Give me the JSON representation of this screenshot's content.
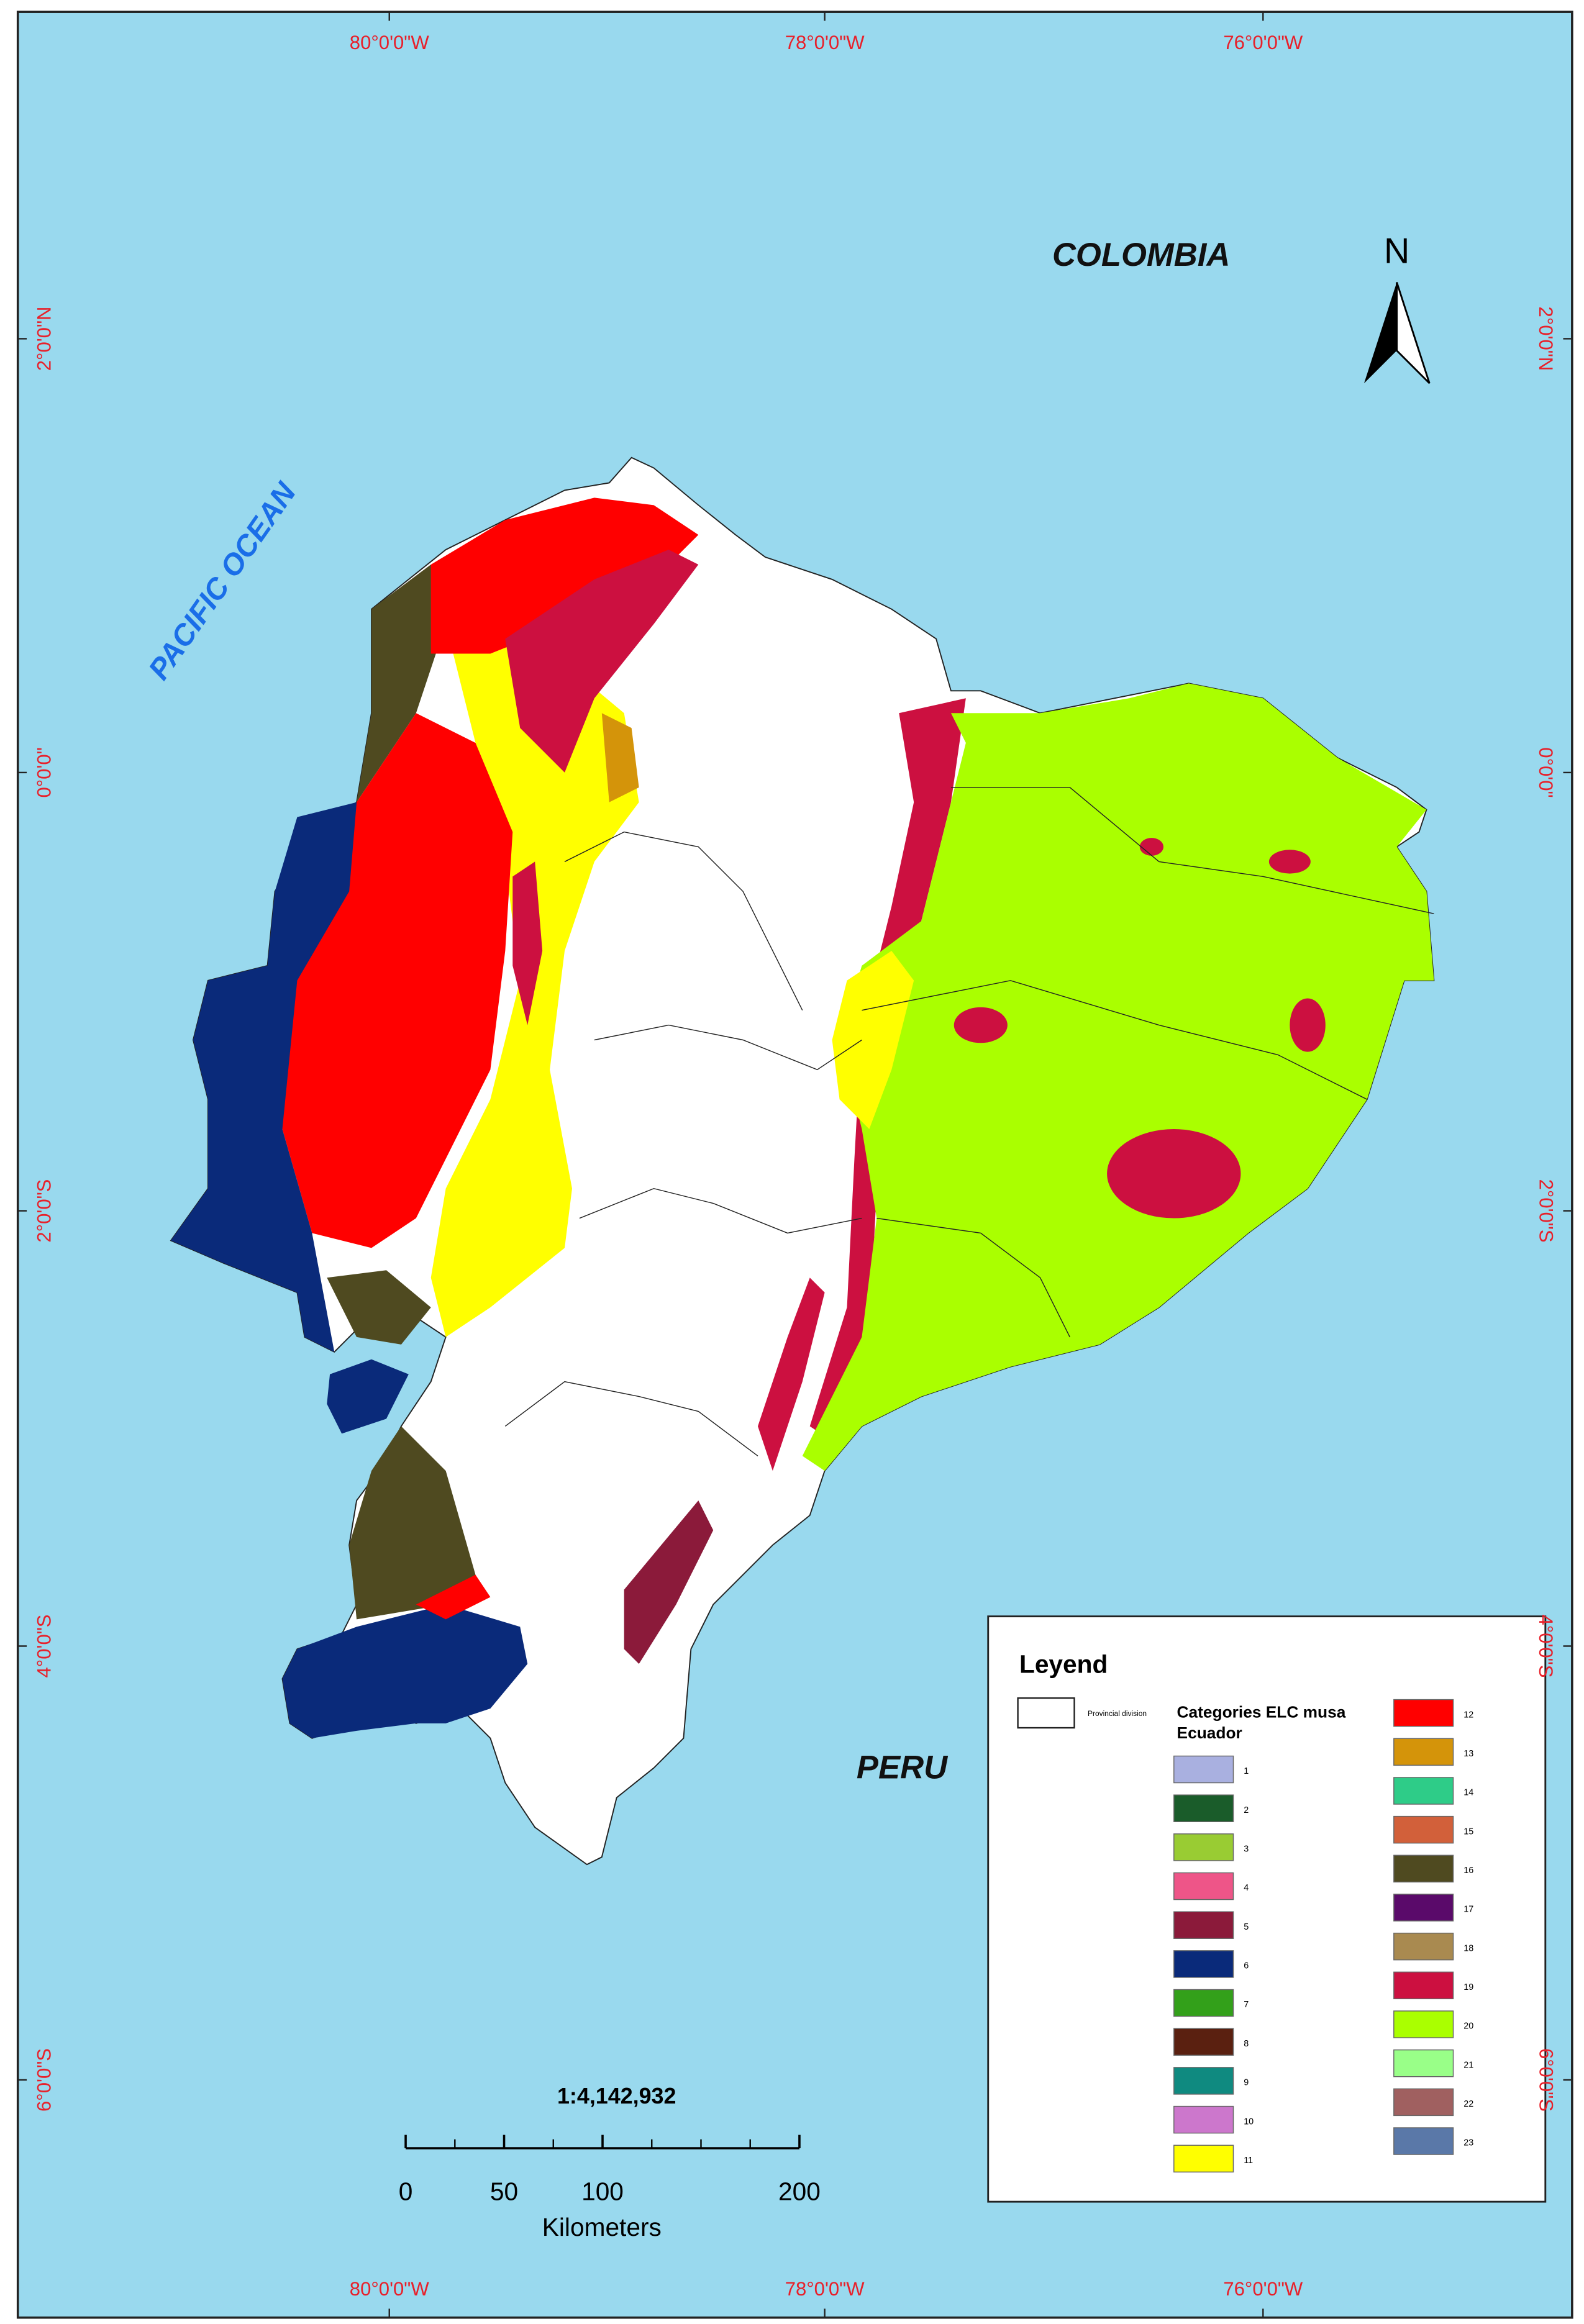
{
  "map": {
    "graticule": {
      "top": [
        "80°0'0\"W",
        "78°0'0\"W",
        "76°0'0\"W"
      ],
      "bottom": [
        "80°0'0\"W",
        "78°0'0\"W",
        "76°0'0\"W"
      ],
      "left": [
        "2°0'0\"N",
        "0°0'0\"",
        "2°0'0\"S",
        "4°0'0\"S",
        "6°0'0\"S"
      ],
      "right": [
        "2°0'0\"N",
        "0°0'0\"",
        "2°0'0\"S",
        "4°0'0\"S",
        "6°0'0\"S"
      ]
    },
    "labels": {
      "colombia": "COLOMBIA",
      "peru": "PERU",
      "ocean": "PACIFIC OCEAN"
    },
    "north_arrow": "N",
    "scale": {
      "ratio": "1:4,142,932",
      "range": [
        0,
        200
      ],
      "ticks": [
        0,
        50,
        100,
        200
      ],
      "unit": "Kilometers"
    }
  },
  "legend": {
    "title": "Leyend",
    "boundary": "Provincial division",
    "heading": [
      "Categories ELC musa",
      "Ecuador"
    ],
    "items": [
      {
        "label": "1",
        "color": "#a9b0e0"
      },
      {
        "label": "2",
        "color": "#1a5c2a"
      },
      {
        "label": "3",
        "color": "#99cc33"
      },
      {
        "label": "4",
        "color": "#ee5588"
      },
      {
        "label": "5",
        "color": "#8b1a3a"
      },
      {
        "label": "6",
        "color": "#0a2a7a"
      },
      {
        "label": "7",
        "color": "#33a01a"
      },
      {
        "label": "8",
        "color": "#5a2010"
      },
      {
        "label": "9",
        "color": "#0f8a80"
      },
      {
        "label": "10",
        "color": "#cc77cc"
      },
      {
        "label": "11",
        "color": "#ffff00"
      },
      {
        "label": "12",
        "color": "#ff0000"
      },
      {
        "label": "13",
        "color": "#d4940a"
      },
      {
        "label": "14",
        "color": "#2ecc88"
      },
      {
        "label": "15",
        "color": "#d2603a"
      },
      {
        "label": "16",
        "color": "#4f4a20"
      },
      {
        "label": "17",
        "color": "#5a0a6a"
      },
      {
        "label": "18",
        "color": "#a98a50"
      },
      {
        "label": "19",
        "color": "#cc1040"
      },
      {
        "label": "20",
        "color": "#aaff00"
      },
      {
        "label": "21",
        "color": "#99ff88"
      },
      {
        "label": "22",
        "color": "#a06060"
      },
      {
        "label": "23",
        "color": "#5a78a8"
      }
    ]
  }
}
